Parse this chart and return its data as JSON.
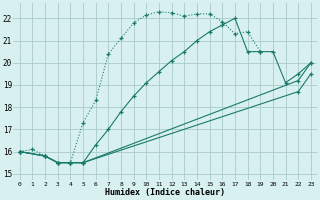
{
  "xlabel": "Humidex (Indice chaleur)",
  "bg_color": "#d8f0f0",
  "grid_color": "#aacccc",
  "line_color": "#1a7a6a",
  "xlim": [
    -0.5,
    23.5
  ],
  "ylim": [
    14.7,
    22.7
  ],
  "xticks": [
    0,
    1,
    2,
    3,
    4,
    5,
    6,
    7,
    8,
    9,
    10,
    11,
    12,
    13,
    14,
    15,
    16,
    17,
    18,
    19,
    20,
    21,
    22,
    23
  ],
  "yticks": [
    15,
    16,
    17,
    18,
    19,
    20,
    21,
    22
  ],
  "curve1_x": [
    0,
    1,
    2,
    3,
    4,
    5,
    6,
    7,
    8,
    9,
    10,
    11,
    12,
    13,
    14,
    15,
    16,
    17,
    18,
    19,
    20,
    21,
    22
  ],
  "curve1_y": [
    16.0,
    16.1,
    15.8,
    15.5,
    15.5,
    17.3,
    18.3,
    20.4,
    21.1,
    21.8,
    22.15,
    22.3,
    22.25,
    22.1,
    22.2,
    22.2,
    21.85,
    21.3,
    21.4,
    20.5,
    null,
    null,
    null
  ],
  "curve2_x": [
    0,
    2,
    3,
    4,
    5,
    6,
    7,
    8,
    9,
    10,
    11,
    12,
    13,
    14,
    15,
    16,
    17,
    18,
    19,
    20,
    21,
    22,
    23
  ],
  "curve2_y": [
    16.0,
    15.8,
    15.5,
    15.5,
    15.5,
    16.3,
    17.0,
    17.8,
    18.5,
    19.1,
    19.6,
    20.1,
    20.5,
    21.0,
    21.4,
    21.7,
    22.0,
    20.5,
    20.5,
    20.5,
    19.1,
    19.5,
    20.0
  ],
  "curve3_x": [
    0,
    2,
    3,
    4,
    5,
    22,
    23
  ],
  "curve3_y": [
    16.0,
    15.8,
    15.5,
    15.5,
    15.5,
    19.2,
    20.0
  ],
  "curve4_x": [
    0,
    2,
    3,
    4,
    5,
    22,
    23
  ],
  "curve4_y": [
    16.0,
    15.8,
    15.5,
    15.5,
    15.5,
    18.7,
    19.5
  ]
}
